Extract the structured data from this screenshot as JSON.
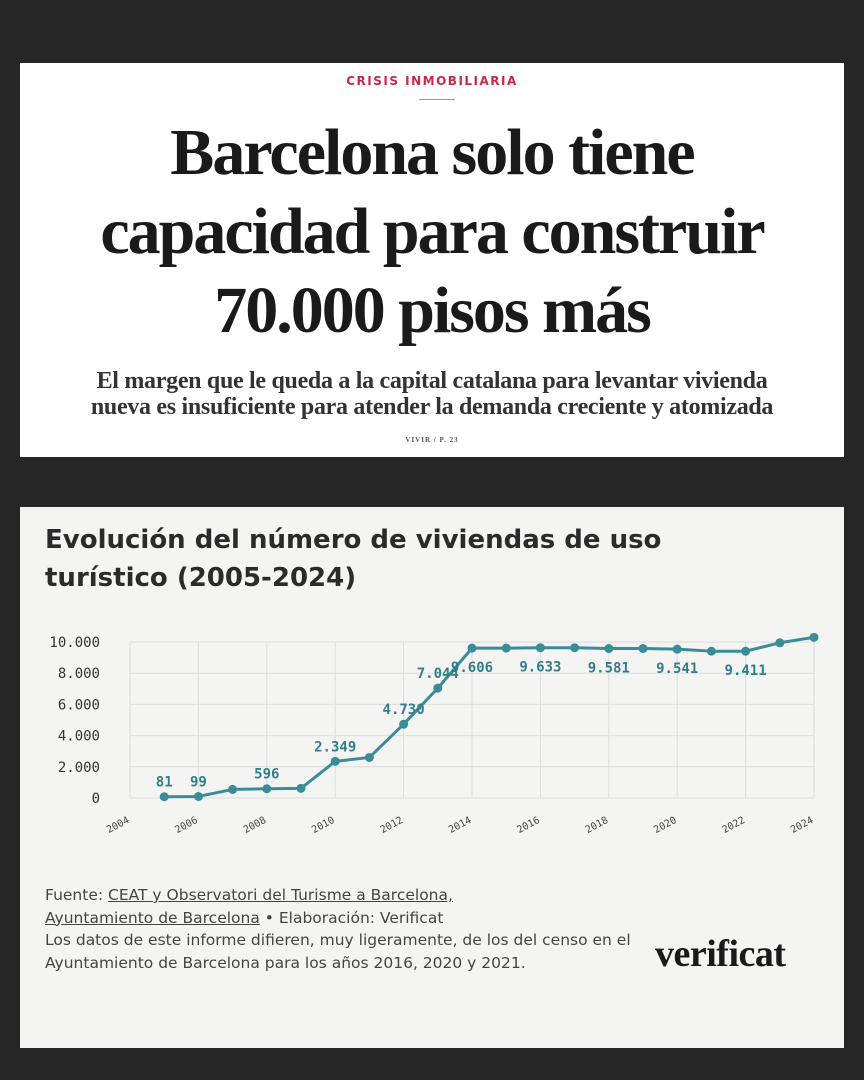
{
  "clipping": {
    "kicker": "CRISIS INMOBILIARIA",
    "headline_lines": [
      "Barcelona solo tiene",
      "capacidad para construir",
      "70.000 pisos más"
    ],
    "standfirst_lines": [
      "El margen que le queda a la capital catalana para levantar vivienda",
      "nueva es insuficiente para atender la demanda creciente y atomizada"
    ],
    "page_ref": "VIVIR / P. 23"
  },
  "chart_card": {
    "title_lines": [
      "Evolución del número de viviendas de uso",
      "turístico (2005-2024)"
    ],
    "source": {
      "label": "Fuente: ",
      "link1": "CEAT y Observatori del Turisme a Barcelona,",
      "link2": "Ayuntamiento de Barcelona",
      "rest": " • Elaboración: Verificat",
      "note": "Los datos de este informe difieren, muy ligeramente, de los del censo en el Ayuntamiento de Barcelona para los años 2016, 2020 y 2021."
    },
    "logo": "verificat"
  },
  "chart_data": {
    "type": "line",
    "title": "Evolución del número de viviendas de uso turístico (2005-2024)",
    "xlabel": "",
    "ylabel": "",
    "x": [
      2005,
      2006,
      2007,
      2008,
      2009,
      2010,
      2011,
      2012,
      2013,
      2014,
      2015,
      2016,
      2017,
      2018,
      2019,
      2020,
      2021,
      2022,
      2023,
      2024
    ],
    "values": [
      81,
      99,
      550,
      596,
      620,
      2349,
      2600,
      4730,
      7044,
      9606,
      9606,
      9633,
      9633,
      9581,
      9581,
      9541,
      9411,
      9411,
      9950,
      10300
    ],
    "data_labels": [
      {
        "x": 2005,
        "text": "81"
      },
      {
        "x": 2006,
        "text": "99"
      },
      {
        "x": 2008,
        "text": "596"
      },
      {
        "x": 2010,
        "text": "2.349"
      },
      {
        "x": 2012,
        "text": "4.730"
      },
      {
        "x": 2013,
        "text": "7.044"
      },
      {
        "x": 2014,
        "text": "9.606"
      },
      {
        "x": 2016,
        "text": "9.633"
      },
      {
        "x": 2018,
        "text": "9.581"
      },
      {
        "x": 2020,
        "text": "9.541"
      },
      {
        "x": 2022,
        "text": "9.411"
      }
    ],
    "xlim": [
      2004,
      2024
    ],
    "ylim": [
      0,
      10000
    ],
    "xticks": [
      2004,
      2006,
      2008,
      2010,
      2012,
      2014,
      2016,
      2018,
      2020,
      2022,
      2024
    ],
    "yticks": [
      0,
      2000,
      4000,
      6000,
      8000,
      10000
    ],
    "ytick_labels": [
      "0",
      "2.000",
      "4.000",
      "6.000",
      "8.000",
      "10.000"
    ],
    "grid": true,
    "line_color": "#3a8c98",
    "label_color": "#2f7f8b"
  }
}
